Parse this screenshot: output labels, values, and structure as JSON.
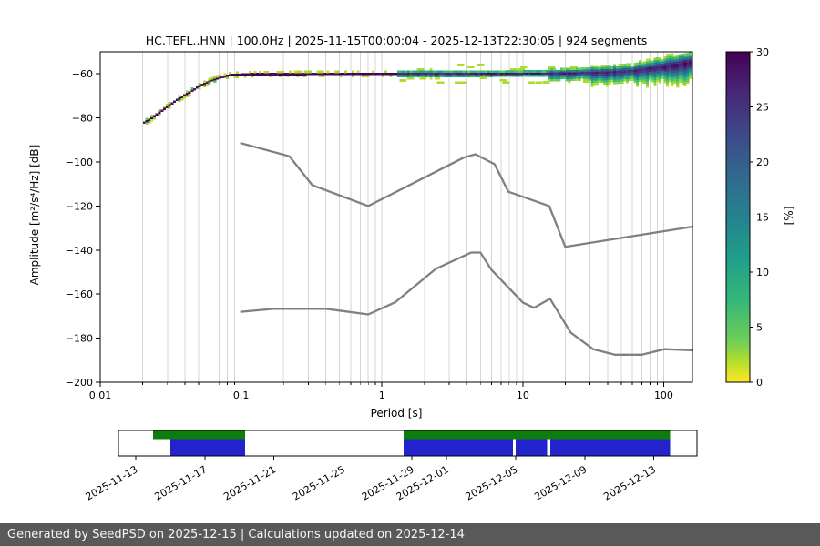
{
  "title": "HC.TEFL..HNN | 100.0Hz | 2025-11-15T00:00:04 - 2025-12-13T22:30:05 | 924 segments",
  "footer": {
    "text": "Generated by SeedPSD on 2025-12-15 | Calculations updated on 2025-12-14",
    "bg": "#595959",
    "fg": "#f5f5f5"
  },
  "chart_data": {
    "type": "heatmap",
    "title": "HC.TEFL..HNN | 100.0Hz | 2025-11-15T00:00:04 - 2025-12-13T22:30:05 | 924 segments",
    "xlabel": "Period [s]",
    "ylabel": "Amplitude [m²/s⁴/Hz] [dB]",
    "x_scale": "log",
    "xlim": [
      0.01,
      160
    ],
    "ylim": [
      -200,
      -50
    ],
    "grid": true,
    "grid_color": "#d6d6d6",
    "x_major_ticks": [
      {
        "value": 0.01,
        "label": "0.01"
      },
      {
        "value": 0.1,
        "label": "0.1"
      },
      {
        "value": 1,
        "label": "1"
      },
      {
        "value": 10,
        "label": "10"
      },
      {
        "value": 100,
        "label": "100"
      }
    ],
    "y_ticks": [
      {
        "value": -60,
        "label": "−60"
      },
      {
        "value": -80,
        "label": "−80"
      },
      {
        "value": -100,
        "label": "−100"
      },
      {
        "value": -120,
        "label": "−120"
      },
      {
        "value": -140,
        "label": "−140"
      },
      {
        "value": -160,
        "label": "−160"
      },
      {
        "value": -180,
        "label": "−180"
      },
      {
        "value": -200,
        "label": "−200"
      }
    ],
    "colorbar": {
      "label": "[%]",
      "min": 0,
      "max": 30,
      "ticks": [
        0,
        5,
        10,
        15,
        20,
        25,
        30
      ],
      "colormap": "viridis_r",
      "stops": [
        [
          "0",
          "#440154"
        ],
        [
          "0.125",
          "#482878"
        ],
        [
          "0.25",
          "#3e4989"
        ],
        [
          "0.375",
          "#31688e"
        ],
        [
          "0.5",
          "#26828e"
        ],
        [
          "0.625",
          "#1f9e89"
        ],
        [
          "0.75",
          "#35b779"
        ],
        [
          "0.875",
          "#6ece58"
        ],
        [
          "0.9375",
          "#b5de2b"
        ],
        [
          "1",
          "#fde725"
        ]
      ]
    },
    "noise_models": {
      "color": "#808080",
      "high": [
        [
          0.1,
          -91.5
        ],
        [
          0.22,
          -97.4
        ],
        [
          0.32,
          -110.5
        ],
        [
          0.8,
          -120.0
        ],
        [
          3.8,
          -98.0
        ],
        [
          4.6,
          -96.5
        ],
        [
          6.3,
          -101.0
        ],
        [
          7.9,
          -113.5
        ],
        [
          15.4,
          -120.0
        ],
        [
          20.0,
          -138.5
        ],
        [
          160.0,
          -129.4
        ]
      ],
      "low": [
        [
          0.1,
          -168.0
        ],
        [
          0.17,
          -166.7
        ],
        [
          0.4,
          -166.7
        ],
        [
          0.8,
          -169.2
        ],
        [
          1.24,
          -163.7
        ],
        [
          2.4,
          -148.6
        ],
        [
          4.3,
          -141.1
        ],
        [
          5.0,
          -141.1
        ],
        [
          6.0,
          -149.0
        ],
        [
          10.0,
          -163.8
        ],
        [
          12.0,
          -166.2
        ],
        [
          15.6,
          -162.1
        ],
        [
          21.9,
          -177.5
        ],
        [
          31.6,
          -185.0
        ],
        [
          45.0,
          -187.5
        ],
        [
          70.0,
          -187.5
        ],
        [
          101.0,
          -185.0
        ],
        [
          160.0,
          -185.5
        ]
      ]
    },
    "ppsd": {
      "bins_per_decade": 56,
      "min_pct": 1.4,
      "mode": [
        [
          0.02,
          -82.5
        ],
        [
          0.023,
          -80.3
        ],
        [
          0.026,
          -77.8
        ],
        [
          0.03,
          -74.8
        ],
        [
          0.035,
          -71.8
        ],
        [
          0.042,
          -68.8
        ],
        [
          0.05,
          -65.8
        ],
        [
          0.06,
          -63.3
        ],
        [
          0.072,
          -61.5
        ],
        [
          0.085,
          -60.5
        ],
        [
          0.12,
          -60.1
        ],
        [
          1.0,
          -60.0
        ],
        [
          5.0,
          -59.9
        ],
        [
          20,
          -59.8
        ],
        [
          40,
          -59.3
        ],
        [
          60,
          -58.6
        ],
        [
          80,
          -57.5
        ],
        [
          110,
          -56.3
        ],
        [
          160,
          -54.6
        ]
      ],
      "regions": [
        {
          "p0": 0.019,
          "p1": 0.09,
          "su": 0.42,
          "sd": 0.42,
          "peak": 29,
          "outliers": false
        },
        {
          "p0": 0.09,
          "p1": 1.3,
          "su": 0.38,
          "sd": 0.38,
          "peak": 30,
          "outliers": false
        },
        {
          "p0": 1.3,
          "p1": 4.0,
          "su": 0.7,
          "sd": 0.7,
          "peak": 26,
          "outliers": true
        },
        {
          "p0": 4.0,
          "p1": 15,
          "su": 0.65,
          "sd": 0.65,
          "peak": 27,
          "outliers": true
        },
        {
          "p0": 15,
          "p1": 30,
          "su": 1.0,
          "sd": 1.4,
          "peak": 26,
          "outliers": true
        },
        {
          "p0": 30,
          "p1": 60,
          "su": 1.3,
          "sd": 2.1,
          "peak": 26,
          "outliers": false
        },
        {
          "p0": 60,
          "p1": 100,
          "su": 1.7,
          "sd": 2.8,
          "peak": 27,
          "outliers": false
        },
        {
          "p0": 100,
          "p1": 161,
          "su": 2.1,
          "sd": 3.6,
          "peak": 28,
          "outliers": false
        }
      ]
    }
  },
  "timeline": {
    "range": [
      "2025-11-12T00:00:00",
      "2025-12-15T12:00:00"
    ],
    "green_color": "#0c7c0c",
    "blue_color": "#2323cc",
    "ticks": [
      {
        "date": "2025-11-13T00:00:00",
        "label": "2025-11-13"
      },
      {
        "date": "2025-11-17T00:00:00",
        "label": "2025-11-17"
      },
      {
        "date": "2025-11-21T00:00:00",
        "label": "2025-11-21"
      },
      {
        "date": "2025-11-25T00:00:00",
        "label": "2025-11-25"
      },
      {
        "date": "2025-11-29T00:00:00",
        "label": "2025-11-29"
      },
      {
        "date": "2025-12-01T00:00:00",
        "label": "2025-12-01"
      },
      {
        "date": "2025-12-05T00:00:00",
        "label": "2025-12-05"
      },
      {
        "date": "2025-12-09T00:00:00",
        "label": "2025-12-09"
      },
      {
        "date": "2025-12-13T00:00:00",
        "label": "2025-12-13"
      }
    ],
    "coverage_green": [
      [
        "2025-11-14T00:00:00",
        "2025-11-19T08:00:00"
      ],
      [
        "2025-11-28T12:00:00",
        "2025-12-13T22:30:00"
      ]
    ],
    "coverage_blue": [
      [
        "2025-11-15T00:00:00",
        "2025-11-19T08:00:00"
      ],
      [
        "2025-11-28T12:00:00",
        "2025-12-04T20:00:00"
      ],
      [
        "2025-12-05T00:00:00",
        "2025-12-06T20:00:00"
      ],
      [
        "2025-12-07T00:00:00",
        "2025-12-13T22:30:00"
      ]
    ]
  }
}
